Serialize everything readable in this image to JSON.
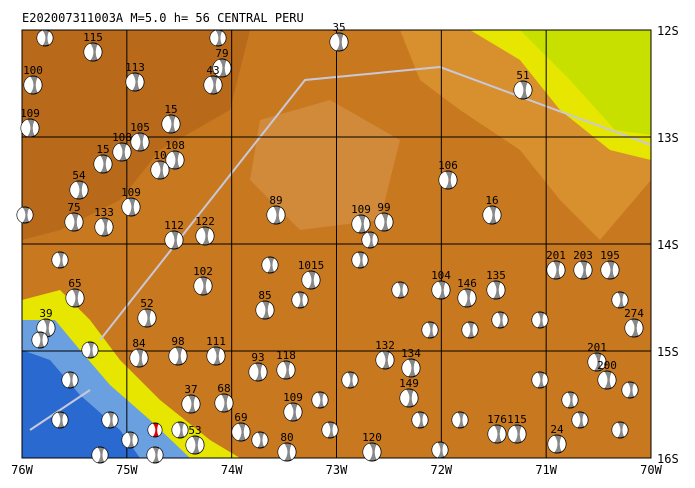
{
  "title": "E202007311003A M=5.0 h= 56 CENTRAL PERU",
  "x_labels": [
    "76W",
    "75W",
    "74W",
    "73W",
    "72W",
    "71W",
    "70W"
  ],
  "y_labels": [
    "12S",
    "13S",
    "14S",
    "15S",
    "16S"
  ],
  "events": [
    "115",
    "100",
    "109",
    "113",
    "79",
    "43",
    "35",
    "51",
    "15",
    "105",
    "108",
    "15",
    "108",
    "10",
    "54",
    "109",
    "89",
    "109",
    "99",
    "106",
    "16",
    "75",
    "133",
    "112",
    "122",
    "102",
    "201",
    "203",
    "195",
    "274",
    "135",
    "146",
    "104",
    "1015",
    "85",
    "52",
    "39",
    "98",
    "84",
    "111",
    "93",
    "118",
    "132",
    "134",
    "65",
    "201",
    "68",
    "37",
    "69",
    "149",
    "109",
    "80",
    "120",
    "176",
    "115",
    "24",
    "53",
    "200"
  ]
}
